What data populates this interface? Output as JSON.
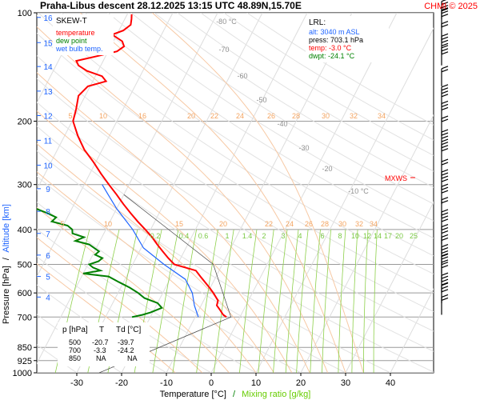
{
  "header": {
    "title": "Praha-Libus   descent   28.12.2025 13:15 UTC   48.89N,15.70E",
    "credit": "CHMI © 2025"
  },
  "legend": {
    "title": "SKEW-T",
    "items": [
      {
        "label": "temperature",
        "color": "#ff0000"
      },
      {
        "label": "dew point",
        "color": "#008000"
      },
      {
        "label": "wet bulb temp.",
        "color": "#1e64ff"
      }
    ]
  },
  "lrl_box": {
    "title": "LRL:",
    "alt": "alt: 3040 m ASL",
    "press": "press: 703.1 hPa",
    "temp": "temp: -3.0 °C",
    "dwpt": "dwpt: -24.1 °C"
  },
  "mxws_label": "MXWS",
  "table": {
    "headers": [
      "p [hPa]",
      "T",
      "Td [°C]"
    ],
    "rows": [
      [
        "500",
        "-20.7",
        "-39.7"
      ],
      [
        "700",
        "-3.3",
        "-24.2"
      ],
      [
        "850",
        "NA",
        "NA"
      ]
    ]
  },
  "axes": {
    "ylabel_pressure": "Pressure [hPa]",
    "ylabel_sep": "/",
    "ylabel_altitude": "Altitude [km]",
    "xlabel_temperature": "Temperature [°C]",
    "xlabel_sep": "/",
    "xlabel_mixing": "Mixing ratio [g/kg]"
  },
  "chart_data": {
    "type": "line",
    "pressure_ticks": [
      100,
      200,
      300,
      400,
      500,
      600,
      700,
      850,
      925,
      1000
    ],
    "temperature_ticks": [
      -30,
      -20,
      -10,
      0,
      10,
      20,
      30,
      40
    ],
    "altitude_ticks_km": [
      16,
      15,
      14,
      13,
      12,
      11,
      10,
      9,
      8,
      7,
      6,
      5,
      4
    ],
    "dry_adiabat_labels": [
      {
        "label": "-80 °C"
      },
      {
        "label": "-70"
      },
      {
        "label": "-60"
      },
      {
        "label": "-50"
      },
      {
        "label": "-40"
      },
      {
        "label": "-30"
      },
      {
        "label": "-20"
      },
      {
        "label": "-10 °C"
      }
    ],
    "moist_labels_upper": [
      "5",
      "10",
      "16",
      "20",
      "22",
      "24",
      "26",
      "28",
      "30",
      "32",
      "34"
    ],
    "moist_labels_mid": [
      "5",
      "10",
      "15",
      "20",
      "22",
      "24",
      "26",
      "28",
      "30",
      "32",
      "34"
    ],
    "mixing_ratio_labels": [
      "0.2",
      "0.4",
      "0.6",
      "1",
      "1.4",
      "2",
      "3",
      "4",
      "6",
      "8",
      "10",
      "12",
      "14",
      "17",
      "20",
      "25"
    ],
    "temperature_profile": [
      [
        700,
        -3.0
      ],
      [
        690,
        -4.0
      ],
      [
        670,
        -5.2
      ],
      [
        650,
        -6.5
      ],
      [
        630,
        -6.8
      ],
      [
        600,
        -8.7
      ],
      [
        580,
        -10.2
      ],
      [
        560,
        -11.8
      ],
      [
        540,
        -13.5
      ],
      [
        520,
        -15.2
      ],
      [
        500,
        -20.7
      ],
      [
        480,
        -22.8
      ],
      [
        460,
        -24.8
      ],
      [
        440,
        -26.8
      ],
      [
        420,
        -28.8
      ],
      [
        400,
        -31.2
      ],
      [
        380,
        -33.8
      ],
      [
        360,
        -36.4
      ],
      [
        340,
        -39.0
      ],
      [
        320,
        -41.6
      ],
      [
        300,
        -44.5
      ],
      [
        280,
        -47.5
      ],
      [
        260,
        -50.5
      ],
      [
        240,
        -54.0
      ],
      [
        220,
        -57.0
      ],
      [
        200,
        -59.8
      ],
      [
        185,
        -60.5
      ],
      [
        170,
        -61.5
      ],
      [
        160,
        -60.5
      ],
      [
        155,
        -57.0
      ],
      [
        150,
        -58.5
      ],
      [
        145,
        -62.5
      ],
      [
        140,
        -65.0
      ],
      [
        136,
        -66.0
      ],
      [
        132,
        -62.0
      ],
      [
        128,
        -58.0
      ],
      [
        124,
        -57.0
      ],
      [
        120,
        -58.0
      ],
      [
        115,
        -61.0
      ],
      [
        112,
        -59.0
      ],
      [
        108,
        -58.0
      ],
      [
        104,
        -58.5
      ],
      [
        101,
        -59.0
      ]
    ],
    "dewpoint_profile": [
      [
        700,
        -24.1
      ],
      [
        690,
        -22.0
      ],
      [
        680,
        -20.5
      ],
      [
        660,
        -18.5
      ],
      [
        640,
        -20.0
      ],
      [
        620,
        -23.5
      ],
      [
        600,
        -25.5
      ],
      [
        580,
        -28.0
      ],
      [
        560,
        -31.0
      ],
      [
        540,
        -34.0
      ],
      [
        530,
        -40.0
      ],
      [
        520,
        -36.5
      ],
      [
        510,
        -38.5
      ],
      [
        500,
        -39.7
      ],
      [
        490,
        -38.0
      ],
      [
        480,
        -37.5
      ],
      [
        470,
        -39.5
      ],
      [
        460,
        -39.0
      ],
      [
        450,
        -40.5
      ],
      [
        440,
        -42.0
      ],
      [
        430,
        -45.5
      ],
      [
        420,
        -44.0
      ],
      [
        410,
        -47.0
      ],
      [
        400,
        -47.5
      ],
      [
        390,
        -49.0
      ],
      [
        380,
        -53.0
      ],
      [
        370,
        -52.5
      ],
      [
        360,
        -55.0
      ],
      [
        350,
        -58.0
      ],
      [
        340,
        -60.0
      ],
      [
        330,
        -63.0
      ],
      [
        320,
        -65.5
      ],
      [
        310,
        -68.0
      ],
      [
        300,
        -70.5
      ],
      [
        290,
        -73.0
      ],
      [
        280,
        -75.5
      ],
      [
        270,
        -78.0
      ],
      [
        260,
        -80.5
      ],
      [
        250,
        -82.5
      ],
      [
        240,
        -86.0
      ],
      [
        230,
        -86.5
      ],
      [
        220,
        -89.0
      ],
      [
        210,
        -91.0
      ],
      [
        200,
        -93.0
      ],
      [
        190,
        -95.0
      ],
      [
        180,
        -97.5
      ],
      [
        170,
        -100.0
      ],
      [
        160,
        -102.0
      ],
      [
        150,
        -103.0
      ],
      [
        140,
        -104.5
      ],
      [
        130,
        -106.0
      ],
      [
        120,
        -108.5
      ],
      [
        110,
        -110.5
      ],
      [
        104,
        -112.0
      ],
      [
        101,
        -113.0
      ]
    ],
    "wetbulb_profile": [
      [
        700,
        -9.3
      ],
      [
        650,
        -11.5
      ],
      [
        600,
        -13.4
      ],
      [
        550,
        -16.5
      ],
      [
        500,
        -23.0
      ],
      [
        450,
        -29.5
      ],
      [
        400,
        -34.0
      ],
      [
        350,
        -40.0
      ],
      [
        320,
        -43.5
      ],
      [
        300,
        -46.0
      ]
    ],
    "wind_pressures": [
      690,
      640,
      600,
      560,
      530,
      500,
      470,
      440,
      400,
      370,
      340,
      310,
      290,
      260,
      240,
      220,
      200,
      180,
      160,
      140,
      130,
      120,
      110,
      104
    ]
  }
}
